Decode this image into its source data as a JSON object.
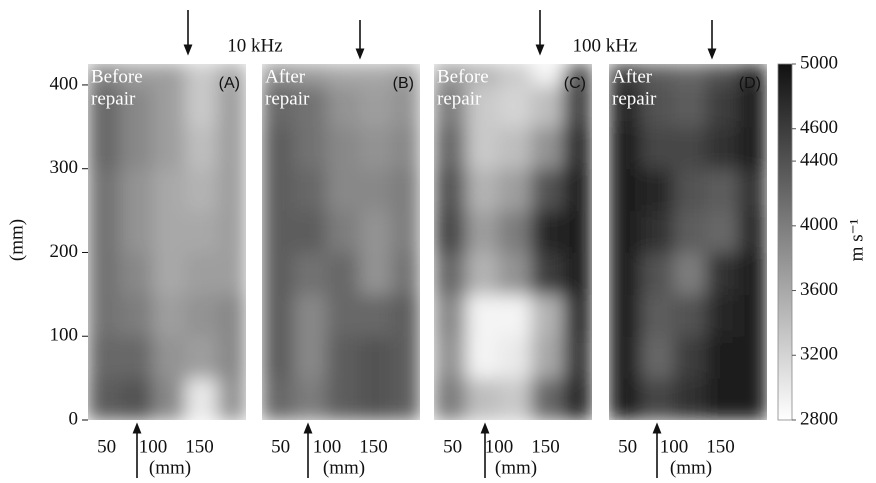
{
  "chart_data": {
    "type": "heatmap",
    "frequency_labels": [
      "10 kHz",
      "100 kHz"
    ],
    "ylabel": "(mm)",
    "xlabel": "(mm)",
    "xlim": [
      30,
      200
    ],
    "ylim": [
      0,
      425
    ],
    "xticks": [
      50,
      100,
      150
    ],
    "yticks": [
      0,
      100,
      200,
      300,
      400
    ],
    "xedges": [
      30,
      65,
      100,
      135,
      170,
      200
    ],
    "yedges": [
      0,
      50,
      100,
      150,
      200,
      250,
      300,
      350,
      400,
      425
    ],
    "colormap": [
      "#ffffff",
      "#111111"
    ],
    "colorbar": {
      "label": "m s⁻¹",
      "lim": [
        2800,
        5000
      ],
      "ticks": [
        5000,
        4600,
        4400,
        4000,
        3600,
        3200,
        2800
      ]
    },
    "panels": [
      {
        "label": "(A)",
        "title": [
          "Before",
          "repair"
        ],
        "values": [
          [
            4300,
            4400,
            3900,
            3000,
            3800
          ],
          [
            4200,
            4200,
            3800,
            3700,
            3900
          ],
          [
            4100,
            4000,
            3700,
            3800,
            3900
          ],
          [
            4100,
            3900,
            3600,
            3700,
            3700
          ],
          [
            4100,
            3800,
            3600,
            3600,
            3700
          ],
          [
            4100,
            3800,
            3600,
            3500,
            3700
          ],
          [
            4200,
            3900,
            3700,
            3400,
            3700
          ],
          [
            4200,
            3900,
            3700,
            3300,
            3700
          ],
          [
            3900,
            3700,
            3700,
            3300,
            3600
          ]
        ]
      },
      {
        "label": "(B)",
        "title": [
          "After",
          "repair"
        ],
        "values": [
          [
            4200,
            4000,
            4300,
            4400,
            4300
          ],
          [
            4300,
            3900,
            4300,
            4400,
            4300
          ],
          [
            4300,
            3900,
            4200,
            4200,
            4300
          ],
          [
            4300,
            4100,
            4200,
            3800,
            4100
          ],
          [
            4300,
            4300,
            4000,
            3800,
            4000
          ],
          [
            4300,
            4200,
            3900,
            3900,
            4000
          ],
          [
            4300,
            4100,
            3900,
            3800,
            3900
          ],
          [
            4200,
            4100,
            3800,
            3700,
            3800
          ],
          [
            3800,
            3700,
            3600,
            3600,
            3700
          ]
        ]
      },
      {
        "label": "(C)",
        "title": [
          "Before",
          "repair"
        ],
        "values": [
          [
            4000,
            3400,
            3300,
            4200,
            4800
          ],
          [
            3800,
            2900,
            3000,
            3600,
            4700
          ],
          [
            3900,
            2900,
            2900,
            3500,
            4800
          ],
          [
            4200,
            3500,
            3800,
            4600,
            4900
          ],
          [
            4500,
            3700,
            4000,
            4800,
            4900
          ],
          [
            4400,
            3500,
            3700,
            4400,
            4900
          ],
          [
            4200,
            3300,
            3400,
            3800,
            4800
          ],
          [
            4000,
            3300,
            3200,
            3400,
            4600
          ],
          [
            3700,
            3500,
            3300,
            2900,
            4500
          ]
        ]
      },
      {
        "label": "(D)",
        "title": [
          "After",
          "repair"
        ],
        "values": [
          [
            4900,
            4500,
            4700,
            4900,
            4900
          ],
          [
            4900,
            4200,
            4600,
            4900,
            4900
          ],
          [
            4900,
            4300,
            4400,
            4800,
            4900
          ],
          [
            4900,
            4400,
            4000,
            4700,
            4900
          ],
          [
            4900,
            4700,
            4300,
            4200,
            4800
          ],
          [
            4900,
            4800,
            4400,
            4300,
            4700
          ],
          [
            4900,
            4500,
            4500,
            4700,
            4900
          ],
          [
            4800,
            4400,
            4300,
            4600,
            4900
          ],
          [
            4600,
            4300,
            4200,
            4400,
            4800
          ]
        ]
      }
    ]
  }
}
